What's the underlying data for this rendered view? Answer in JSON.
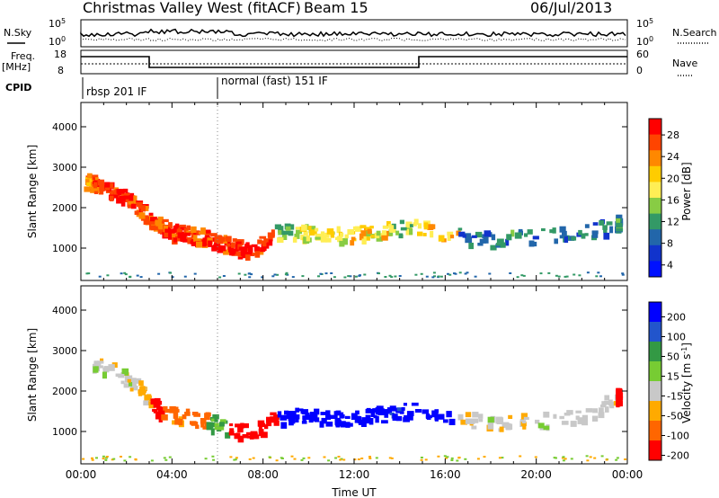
{
  "header": {
    "site": "Christmas Valley West (fitACF)",
    "beam": "Beam 15",
    "date": "06/Jul/2013"
  },
  "strip_labels": {
    "nsky": "N.Sky",
    "nsky_ticks": [
      "10^5",
      "10^0"
    ],
    "nsearch": "N.Search",
    "nsearch_ticks": [
      "10^5",
      "10^0"
    ],
    "freq": "Freq.",
    "freq_unit": "[MHz]",
    "freq_ticks": [
      "18",
      "8"
    ],
    "nave": "Nave",
    "nave_ticks": [
      "60",
      "0"
    ],
    "cpid": "CPID",
    "cpid_modes": [
      "rbsp 201 IF",
      "normal (fast) 151 IF"
    ]
  },
  "chart_data": [
    {
      "type": "heatmap",
      "name": "power-panel",
      "ylabel": "Slant Range [km]",
      "xlabel": "",
      "y_ticks": [
        1000,
        2000,
        3000,
        4000
      ],
      "ylim": [
        200,
        4600
      ],
      "xlim": [
        0,
        24
      ],
      "colorbar": {
        "label": "Power [dB]",
        "ticks": [
          "28",
          "24",
          "20",
          "16",
          "12",
          "8",
          "4"
        ],
        "colors": [
          "#ff0000",
          "#ff4400",
          "#ff8800",
          "#ffcc00",
          "#ffee55",
          "#88cc44",
          "#339966",
          "#2266aa",
          "#1133cc",
          "#0011ff"
        ]
      },
      "series": [
        {
          "band": "backscatter",
          "values": [
            [
              0.1,
              2700,
              22
            ],
            [
              0.5,
              2650,
              24
            ],
            [
              1.0,
              2550,
              26
            ],
            [
              1.5,
              2400,
              27
            ],
            [
              2.0,
              2250,
              25
            ],
            [
              2.5,
              2050,
              24
            ],
            [
              3.0,
              1750,
              24
            ],
            [
              3.5,
              1550,
              26
            ],
            [
              4.0,
              1450,
              26
            ],
            [
              4.5,
              1400,
              25
            ],
            [
              5.0,
              1350,
              24
            ],
            [
              5.5,
              1300,
              26
            ],
            [
              6.0,
              1200,
              24
            ],
            [
              6.5,
              1100,
              27
            ],
            [
              7.0,
              1050,
              28
            ],
            [
              7.5,
              1000,
              26
            ],
            [
              8.5,
              1400,
              12
            ],
            [
              9.5,
              1450,
              16
            ],
            [
              10.5,
              1400,
              14
            ],
            [
              11.5,
              1350,
              18
            ],
            [
              12.5,
              1400,
              16
            ],
            [
              13.5,
              1500,
              12
            ],
            [
              14.5,
              1550,
              18
            ],
            [
              16.5,
              1350,
              6
            ],
            [
              18.0,
              1250,
              7
            ],
            [
              20.0,
              1300,
              6
            ],
            [
              22.0,
              1400,
              7
            ],
            [
              23.5,
              1650,
              8
            ]
          ]
        }
      ]
    },
    {
      "type": "heatmap",
      "name": "velocity-panel",
      "ylabel": "Slant Range [km]",
      "xlabel": "Time UT",
      "x_ticks": [
        "00:00",
        "04:00",
        "08:00",
        "12:00",
        "16:00",
        "20:00",
        "00:00"
      ],
      "y_ticks": [
        1000,
        2000,
        3000,
        4000
      ],
      "ylim": [
        200,
        4600
      ],
      "xlim": [
        0,
        24
      ],
      "colorbar": {
        "label": "Velocity [m s^-1]",
        "ticks": [
          "200",
          "100",
          "50",
          "15",
          "-15",
          "-50",
          "-100",
          "-200"
        ],
        "colors": [
          "#0000ff",
          "#2255cc",
          "#339944",
          "#77cc33",
          "#c8c8c8",
          "#ffaa00",
          "#ff6600",
          "#ff0000"
        ]
      },
      "series": [
        {
          "band": "velocity",
          "values": [
            [
              0.5,
              2700,
              0
            ],
            [
              1.5,
              2500,
              0
            ],
            [
              2.5,
              2100,
              -30
            ],
            [
              3.0,
              1800,
              -200
            ],
            [
              3.5,
              1500,
              -60
            ],
            [
              4.5,
              1400,
              -70
            ],
            [
              5.5,
              1300,
              40
            ],
            [
              6.5,
              1100,
              -200
            ],
            [
              7.5,
              1000,
              -200
            ],
            [
              8.5,
              1400,
              180
            ],
            [
              9.5,
              1450,
              200
            ],
            [
              10.5,
              1400,
              190
            ],
            [
              11.5,
              1350,
              200
            ],
            [
              12.5,
              1400,
              180
            ],
            [
              13.5,
              1500,
              160
            ],
            [
              14.5,
              1550,
              170
            ],
            [
              16.5,
              1350,
              0
            ],
            [
              18.0,
              1250,
              0
            ],
            [
              20.0,
              1300,
              5
            ],
            [
              22.0,
              1400,
              -5
            ],
            [
              23.5,
              1900,
              -200
            ]
          ]
        }
      ]
    }
  ]
}
